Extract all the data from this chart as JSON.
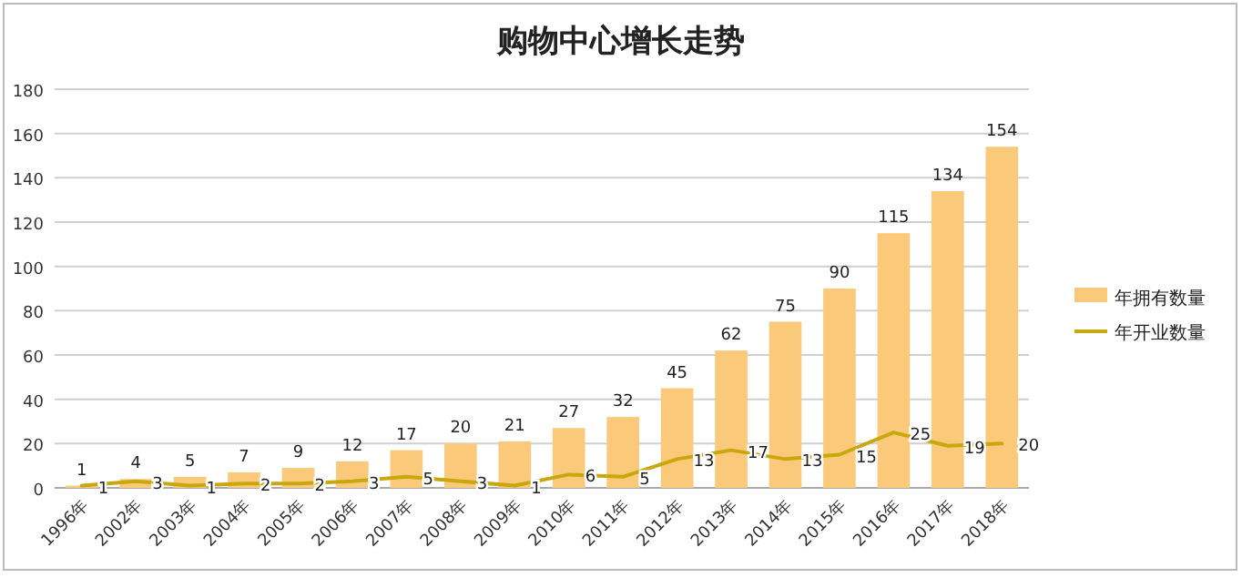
{
  "chart_data": {
    "type": "bar",
    "title": "购物中心增长走势",
    "categories": [
      "1996年",
      "2002年",
      "2003年",
      "2004年",
      "2005年",
      "2006年",
      "2007年",
      "2008年",
      "2009年",
      "2010年",
      "2011年",
      "2012年",
      "2013年",
      "2014年",
      "2015年",
      "2016年",
      "2017年",
      "2018年"
    ],
    "series": [
      {
        "name": "年拥有数量",
        "color": "#fbc97a",
        "values": [
          1,
          4,
          5,
          7,
          9,
          12,
          17,
          20,
          21,
          27,
          32,
          45,
          62,
          75,
          90,
          115,
          134,
          154
        ]
      },
      {
        "name": "年开业数量",
        "type": "line",
        "color": "#c9a70e",
        "values": [
          1,
          3,
          1,
          2,
          2,
          3,
          5,
          3,
          1,
          6,
          5,
          13,
          17,
          13,
          15,
          25,
          19,
          20
        ]
      }
    ],
    "ylim": [
      0,
      180
    ],
    "yticks": [
      0,
      20,
      40,
      60,
      80,
      100,
      120,
      140,
      160,
      180
    ],
    "grid": "y",
    "legend": "right",
    "data_labels": true
  }
}
